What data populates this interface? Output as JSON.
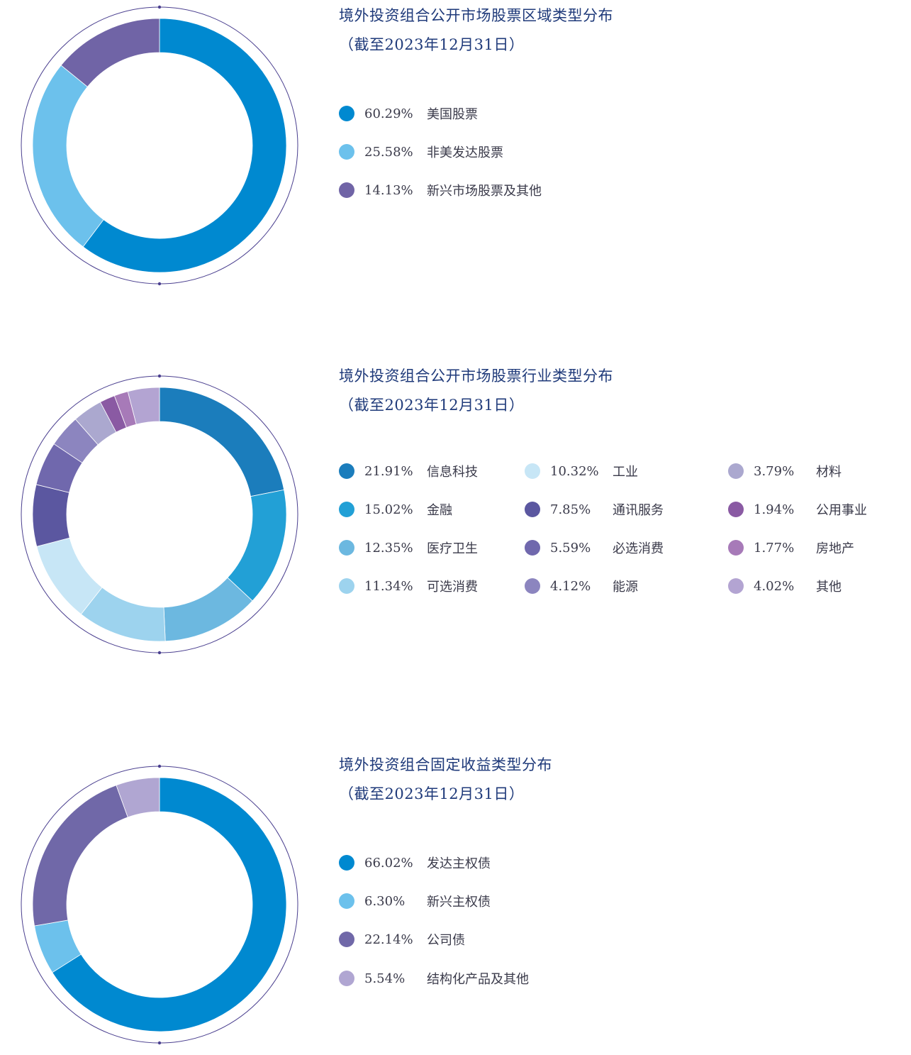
{
  "chart_data": [
    {
      "type": "donut",
      "title": "境外投资组合公开市场股票区域类型分布",
      "subtitle": "（截至2023年12月31日）",
      "series": [
        {
          "label": "美国股票",
          "pct_text": "60.29%",
          "value": 60.29,
          "color": "#0089d0"
        },
        {
          "label": "非美发达股票",
          "pct_text": "25.58%",
          "value": 25.58,
          "color": "#6cc1ec"
        },
        {
          "label": "新兴市场股票及其他",
          "pct_text": "14.13%",
          "value": 14.13,
          "color": "#7064a6"
        }
      ]
    },
    {
      "type": "donut",
      "title": "境外投资组合公开市场股票行业类型分布",
      "subtitle": "（截至2023年12月31日）",
      "series": [
        {
          "label": "信息科技",
          "pct_text": "21.91%",
          "value": 21.91,
          "color": "#1b7dbc"
        },
        {
          "label": "金融",
          "pct_text": "15.02%",
          "value": 15.02,
          "color": "#22a0d6"
        },
        {
          "label": "医疗卫生",
          "pct_text": "12.35%",
          "value": 12.35,
          "color": "#6cb8e0"
        },
        {
          "label": "可选消费",
          "pct_text": "11.34%",
          "value": 11.34,
          "color": "#9dd3ee"
        },
        {
          "label": "工业",
          "pct_text": "10.32%",
          "value": 10.32,
          "color": "#c7e6f6"
        },
        {
          "label": "通讯服务",
          "pct_text": "7.85%",
          "value": 7.85,
          "color": "#5b57a0"
        },
        {
          "label": "必选消费",
          "pct_text": "5.59%",
          "value": 5.59,
          "color": "#7068ad"
        },
        {
          "label": "能源",
          "pct_text": "4.12%",
          "value": 4.12,
          "color": "#8c85bf"
        },
        {
          "label": "材料",
          "pct_text": "3.79%",
          "value": 3.79,
          "color": "#aba8cf"
        },
        {
          "label": "公用事业",
          "pct_text": "1.94%",
          "value": 1.94,
          "color": "#8a5aa3"
        },
        {
          "label": "房地产",
          "pct_text": "1.77%",
          "value": 1.77,
          "color": "#a77ab8"
        },
        {
          "label": "其他",
          "pct_text": "4.02%",
          "value": 4.02,
          "color": "#b3a4d2"
        }
      ]
    },
    {
      "type": "donut",
      "title": "境外投资组合固定收益类型分布",
      "subtitle": "（截至2023年12月31日）",
      "series": [
        {
          "label": "发达主权债",
          "pct_text": "66.02%",
          "value": 66.02,
          "color": "#0089d0"
        },
        {
          "label": "新兴主权债",
          "pct_text": "6.30%",
          "value": 6.3,
          "color": "#6cc1ec"
        },
        {
          "label": "公司债",
          "pct_text": "22.14%",
          "value": 22.14,
          "color": "#7068a8"
        },
        {
          "label": "结构化产品及其他",
          "pct_text": "5.54%",
          "value": 5.54,
          "color": "#b0a6d2"
        }
      ]
    }
  ]
}
